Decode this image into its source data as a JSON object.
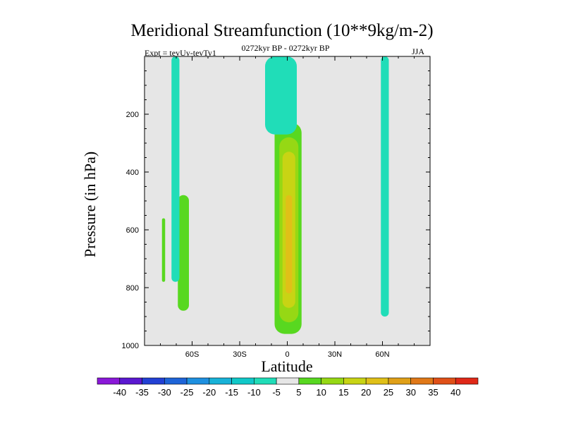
{
  "chart_data": {
    "type": "heatmap",
    "title": "Meridional Streamfunction (10**9kg/m-2)",
    "subtitle_left": "Expt = tevUy-tevTy1",
    "subtitle_center": "0272kyr BP - 0272kyr BP",
    "subtitle_right": "JJA",
    "xlabel": "Latitude",
    "ylabel": "Pressure (in hPa)",
    "xlim": [
      -90,
      90
    ],
    "ylim": [
      1000,
      0
    ],
    "x_ticks": [
      {
        "value": -60,
        "label": "60S"
      },
      {
        "value": -30,
        "label": "30S"
      },
      {
        "value": 0,
        "label": "0"
      },
      {
        "value": 30,
        "label": "30N"
      },
      {
        "value": 60,
        "label": "60N"
      }
    ],
    "y_ticks": [
      {
        "value": 200,
        "label": "200"
      },
      {
        "value": 400,
        "label": "400"
      },
      {
        "value": 600,
        "label": "600"
      },
      {
        "value": 800,
        "label": "800"
      },
      {
        "value": 1000,
        "label": "1000"
      }
    ],
    "background_color": "#e6e6e6",
    "contour_levels": [
      -40,
      -35,
      -30,
      -25,
      -20,
      -15,
      -10,
      -5,
      5,
      10,
      15,
      20,
      25,
      30,
      35,
      40
    ],
    "colorbar_labels": [
      "-40",
      "-35",
      "-30",
      "-25",
      "-20",
      "-15",
      "-10",
      "-5",
      "5",
      "10",
      "15",
      "20",
      "25",
      "30",
      "35",
      "40"
    ],
    "colorbar_colors": [
      "#8a18d8",
      "#5a18d0",
      "#2240d4",
      "#1e64d8",
      "#1e90e0",
      "#18b2d8",
      "#10c8c8",
      "#20ddb8",
      "#e6e6e6",
      "#58d820",
      "#96d814",
      "#c8d414",
      "#e0c018",
      "#e0a018",
      "#e07818",
      "#e05018",
      "#e02818"
    ],
    "regions": [
      {
        "name": "equatorial-positive",
        "level": 5,
        "lat": [
          -8,
          9
        ],
        "p": [
          230,
          960
        ]
      },
      {
        "name": "equatorial-core-10",
        "level": 10,
        "lat": [
          -5,
          7
        ],
        "p": [
          280,
          920
        ]
      },
      {
        "name": "equatorial-core-15",
        "level": 15,
        "lat": [
          -3,
          5
        ],
        "p": [
          330,
          870
        ]
      },
      {
        "name": "equatorial-core-20",
        "level": 20,
        "lat": [
          -1,
          3
        ],
        "p": [
          480,
          820
        ]
      },
      {
        "name": "nh-upper-negative",
        "level": -5,
        "lat": [
          -14,
          6
        ],
        "p": [
          0,
          270
        ]
      },
      {
        "name": "nh-60n-negative",
        "level": -5,
        "lat": [
          59,
          64
        ],
        "p": [
          0,
          900
        ]
      },
      {
        "name": "sh-60s-positive",
        "level": 5,
        "lat": [
          -69,
          -62
        ],
        "p": [
          480,
          880
        ]
      },
      {
        "name": "sh-75s-positive",
        "level": 5,
        "lat": [
          -79,
          -77
        ],
        "p": [
          560,
          780
        ]
      },
      {
        "name": "sh-70s-negative",
        "level": -5,
        "lat": [
          -73,
          -68
        ],
        "p": [
          0,
          780
        ]
      }
    ]
  }
}
